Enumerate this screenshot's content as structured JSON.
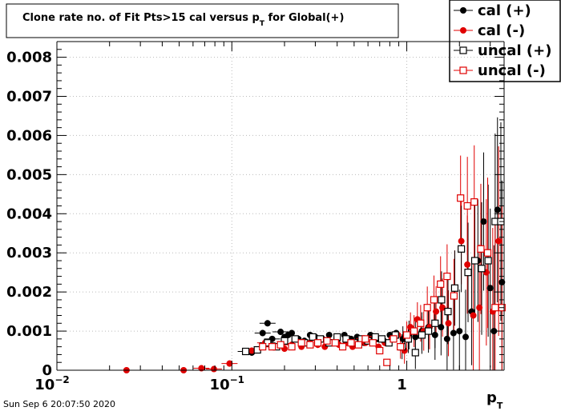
{
  "chart_data": {
    "type": "scatter",
    "title": {
      "main": "Clone rate no. of Fit Pts>15 cal versus p",
      "sub": "T",
      "tail": " for Global(+)"
    },
    "xlabel": {
      "main": "p",
      "sub": "T"
    },
    "ylabel": "",
    "x_scale": "log",
    "xlim": [
      0.01,
      3.6
    ],
    "ylim": [
      0,
      0.0084
    ],
    "grid": true,
    "legend_position": "top-right",
    "x_ticks": [
      {
        "value": 0.01,
        "base": "10",
        "exp": "−2"
      },
      {
        "value": 0.1,
        "base": "10",
        "exp": "−1"
      },
      {
        "value": 1,
        "base": "1",
        "exp": ""
      }
    ],
    "y_ticks": [
      {
        "value": 0,
        "label": "0"
      },
      {
        "value": 0.001,
        "label": "0.001"
      },
      {
        "value": 0.002,
        "label": "0.002"
      },
      {
        "value": 0.003,
        "label": "0.003"
      },
      {
        "value": 0.004,
        "label": "0.004"
      },
      {
        "value": 0.005,
        "label": "0.005"
      },
      {
        "value": 0.006,
        "label": "0.006"
      },
      {
        "value": 0.007,
        "label": "0.007"
      },
      {
        "value": 0.008,
        "label": "0.008"
      }
    ],
    "series": [
      {
        "name": "cal (+)",
        "color": "#000000",
        "marker": "circle-filled",
        "points": [
          [
            0.13,
            0.00045
          ],
          [
            0.15,
            0.00095
          ],
          [
            0.16,
            0.0012
          ],
          [
            0.17,
            0.0008
          ],
          [
            0.19,
            0.00098
          ],
          [
            0.2,
            0.00085
          ],
          [
            0.21,
            0.0009
          ],
          [
            0.22,
            0.00095
          ],
          [
            0.24,
            0.0008
          ],
          [
            0.26,
            0.00075
          ],
          [
            0.28,
            0.0009
          ],
          [
            0.3,
            0.00085
          ],
          [
            0.33,
            0.0008
          ],
          [
            0.36,
            0.0009
          ],
          [
            0.4,
            0.00075
          ],
          [
            0.44,
            0.0009
          ],
          [
            0.48,
            0.0008
          ],
          [
            0.52,
            0.00085
          ],
          [
            0.57,
            0.0007
          ],
          [
            0.62,
            0.0009
          ],
          [
            0.68,
            0.0008
          ],
          [
            0.74,
            0.00075
          ],
          [
            0.8,
            0.0009
          ],
          [
            0.87,
            0.00095
          ],
          [
            0.95,
            0.0008
          ],
          [
            1.03,
            0.0009
          ],
          [
            1.12,
            0.00085
          ],
          [
            1.22,
            0.001
          ],
          [
            1.33,
            0.0011
          ],
          [
            1.45,
            0.0009
          ],
          [
            1.57,
            0.0011
          ],
          [
            1.7,
            0.0008
          ],
          [
            1.85,
            0.00095
          ],
          [
            2.0,
            0.001
          ],
          [
            2.17,
            0.00085
          ],
          [
            2.35,
            0.0015
          ],
          [
            2.55,
            0.0028
          ],
          [
            2.75,
            0.0038
          ],
          [
            3.0,
            0.0021
          ],
          [
            3.15,
            0.001
          ],
          [
            3.3,
            0.0041
          ],
          [
            3.5,
            0.00225
          ]
        ]
      },
      {
        "name": "cal (-)",
        "color": "#e00000",
        "marker": "circle-filled",
        "points": [
          [
            0.025,
            0.0
          ],
          [
            0.053,
            0.0
          ],
          [
            0.067,
            5e-05
          ],
          [
            0.079,
            3e-05
          ],
          [
            0.097,
            0.00017
          ],
          [
            0.13,
            0.0005
          ],
          [
            0.155,
            0.0007
          ],
          [
            0.175,
            0.0006
          ],
          [
            0.2,
            0.00055
          ],
          [
            0.22,
            0.00065
          ],
          [
            0.25,
            0.0006
          ],
          [
            0.28,
            0.0007
          ],
          [
            0.31,
            0.00065
          ],
          [
            0.34,
            0.0006
          ],
          [
            0.37,
            0.0007
          ],
          [
            0.41,
            0.00065
          ],
          [
            0.45,
            0.0007
          ],
          [
            0.49,
            0.0006
          ],
          [
            0.53,
            0.00075
          ],
          [
            0.58,
            0.0007
          ],
          [
            0.63,
            0.0008
          ],
          [
            0.69,
            0.0006
          ],
          [
            0.75,
            0.0007
          ],
          [
            0.82,
            0.0008
          ],
          [
            0.89,
            0.0009
          ],
          [
            0.97,
            0.0005
          ],
          [
            1.05,
            0.0011
          ],
          [
            1.15,
            0.0013
          ],
          [
            1.25,
            0.001
          ],
          [
            1.35,
            0.0011
          ],
          [
            1.47,
            0.0015
          ],
          [
            1.6,
            0.0016
          ],
          [
            1.73,
            0.0012
          ],
          [
            1.88,
            0.0021
          ],
          [
            2.05,
            0.0033
          ],
          [
            2.22,
            0.0027
          ],
          [
            2.4,
            0.0014
          ],
          [
            2.6,
            0.0016
          ],
          [
            2.85,
            0.0025
          ],
          [
            3.1,
            0.0015
          ],
          [
            3.35,
            0.0033
          ]
        ]
      },
      {
        "name": "uncal (+)",
        "color": "#000000",
        "marker": "square-open",
        "points": [
          [
            0.12,
            0.00048
          ],
          [
            0.14,
            0.00052
          ],
          [
            0.16,
            0.0007
          ],
          [
            0.18,
            0.0006
          ],
          [
            0.2,
            0.00075
          ],
          [
            0.23,
            0.0008
          ],
          [
            0.26,
            0.0007
          ],
          [
            0.29,
            0.00085
          ],
          [
            0.32,
            0.0008
          ],
          [
            0.36,
            0.0007
          ],
          [
            0.4,
            0.00085
          ],
          [
            0.45,
            0.0008
          ],
          [
            0.5,
            0.0007
          ],
          [
            0.55,
            0.0008
          ],
          [
            0.6,
            0.00075
          ],
          [
            0.66,
            0.00085
          ],
          [
            0.72,
            0.0008
          ],
          [
            0.79,
            0.0007
          ],
          [
            0.86,
            0.0009
          ],
          [
            0.94,
            0.0006
          ],
          [
            1.02,
            0.0008
          ],
          [
            1.12,
            0.00045
          ],
          [
            1.22,
            0.0009
          ],
          [
            1.33,
            0.001
          ],
          [
            1.45,
            0.0012
          ],
          [
            1.58,
            0.0018
          ],
          [
            1.72,
            0.0015
          ],
          [
            1.88,
            0.0021
          ],
          [
            2.05,
            0.0031
          ],
          [
            2.24,
            0.0025
          ],
          [
            2.45,
            0.0028
          ],
          [
            2.68,
            0.0026
          ],
          [
            2.92,
            0.0028
          ],
          [
            3.2,
            0.0038
          ],
          [
            3.45,
            0.0038
          ]
        ]
      },
      {
        "name": "uncal (-)",
        "color": "#e00000",
        "marker": "square-open",
        "points": [
          [
            0.15,
            0.0006
          ],
          [
            0.17,
            0.0006
          ],
          [
            0.19,
            0.00065
          ],
          [
            0.22,
            0.0006
          ],
          [
            0.25,
            0.0007
          ],
          [
            0.28,
            0.00065
          ],
          [
            0.31,
            0.0007
          ],
          [
            0.35,
            0.00075
          ],
          [
            0.39,
            0.0007
          ],
          [
            0.43,
            0.0006
          ],
          [
            0.48,
            0.0007
          ],
          [
            0.53,
            0.00065
          ],
          [
            0.58,
            0.0008
          ],
          [
            0.64,
            0.0007
          ],
          [
            0.7,
            0.0005
          ],
          [
            0.77,
            0.0002
          ],
          [
            0.84,
            0.0008
          ],
          [
            0.92,
            0.0006
          ],
          [
            1.0,
            0.0009
          ],
          [
            1.1,
            0.001
          ],
          [
            1.2,
            0.0012
          ],
          [
            1.31,
            0.0016
          ],
          [
            1.43,
            0.0018
          ],
          [
            1.56,
            0.0022
          ],
          [
            1.7,
            0.0024
          ],
          [
            1.86,
            0.0019
          ],
          [
            2.03,
            0.0044
          ],
          [
            2.22,
            0.0042
          ],
          [
            2.43,
            0.0043
          ],
          [
            2.65,
            0.0031
          ],
          [
            2.9,
            0.003
          ],
          [
            3.2,
            0.0016
          ],
          [
            3.5,
            0.0016
          ]
        ]
      }
    ]
  },
  "footer": {
    "timestamp": "Sun Sep  6 20:07:50 2020"
  }
}
